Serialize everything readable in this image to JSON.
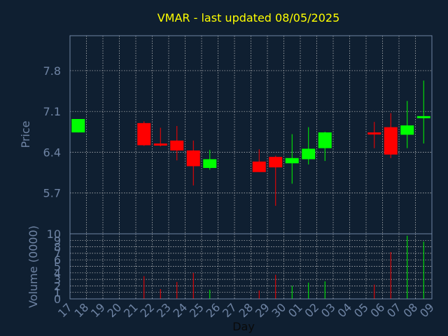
{
  "chart_data": {
    "type": "candlestick",
    "title": "VMAR - last updated 08/05/2025",
    "xlabel": "Day",
    "ylabel": "Price",
    "volume_ylabel": "Volume (0000)",
    "grid": true,
    "colors": {
      "background": "#0f1f31",
      "frame": "#6f84a4",
      "grid": "#c8c8c8",
      "title": "#ffff00",
      "axis_label": "#6f84a4",
      "up": "#00ff00",
      "down": "#ff0000"
    },
    "price_axis": {
      "ticks": [
        5.7,
        6.4,
        7.1,
        7.8
      ],
      "ylim": [
        5.0,
        8.4
      ]
    },
    "volume_axis": {
      "ticks": [
        0,
        1,
        2,
        3,
        4,
        5,
        6,
        7,
        8,
        9,
        10
      ],
      "tick_labels": [
        "0",
        "1",
        "2",
        "3",
        "4",
        "5",
        "6",
        "7",
        "8",
        "9",
        "10"
      ],
      "ylim": [
        0,
        10
      ]
    },
    "days": [
      "17",
      "18",
      "19",
      "20",
      "21",
      "22",
      "23",
      "24",
      "25",
      "26",
      "27",
      "28",
      "29",
      "30",
      "01",
      "02",
      "03",
      "04",
      "05",
      "06",
      "07",
      "08",
      "09"
    ],
    "candles": [
      {
        "day": "17",
        "open": 6.74,
        "high": 6.97,
        "low": 6.74,
        "close": 6.97,
        "volume": 0
      },
      {
        "day": "21",
        "open": 6.9,
        "high": 6.93,
        "low": 6.51,
        "close": 6.52,
        "volume": 3.5
      },
      {
        "day": "22",
        "open": 6.55,
        "high": 6.82,
        "low": 6.5,
        "close": 6.52,
        "volume": 1.5
      },
      {
        "day": "23",
        "open": 6.6,
        "high": 6.85,
        "low": 6.26,
        "close": 6.43,
        "volume": 2.6
      },
      {
        "day": "24",
        "open": 6.43,
        "high": 6.6,
        "low": 5.83,
        "close": 6.16,
        "volume": 4.0
      },
      {
        "day": "25",
        "open": 6.13,
        "high": 6.44,
        "low": 6.1,
        "close": 6.28,
        "volume": 1.4
      },
      {
        "day": "28",
        "open": 6.24,
        "high": 6.45,
        "low": 6.06,
        "close": 6.06,
        "volume": 1.3
      },
      {
        "day": "29",
        "open": 6.32,
        "high": 6.34,
        "low": 5.48,
        "close": 6.14,
        "volume": 3.7
      },
      {
        "day": "30",
        "open": 6.21,
        "high": 6.71,
        "low": 5.86,
        "close": 6.3,
        "volume": 2.0
      },
      {
        "day": "01",
        "open": 6.28,
        "high": 6.83,
        "low": 6.19,
        "close": 6.46,
        "volume": 2.5
      },
      {
        "day": "02",
        "open": 6.47,
        "high": 6.75,
        "low": 6.25,
        "close": 6.74,
        "volume": 2.7
      },
      {
        "day": "05",
        "open": 6.74,
        "high": 6.92,
        "low": 6.47,
        "close": 6.71,
        "volume": 2.2
      },
      {
        "day": "06",
        "open": 6.83,
        "high": 7.07,
        "low": 6.3,
        "close": 6.36,
        "volume": 7.2
      },
      {
        "day": "07",
        "open": 6.7,
        "high": 7.28,
        "low": 6.47,
        "close": 6.86,
        "volume": 9.7
      },
      {
        "day": "08",
        "open": 7.02,
        "high": 7.63,
        "low": 6.55,
        "close": 7.02,
        "volume": 8.8
      }
    ]
  }
}
